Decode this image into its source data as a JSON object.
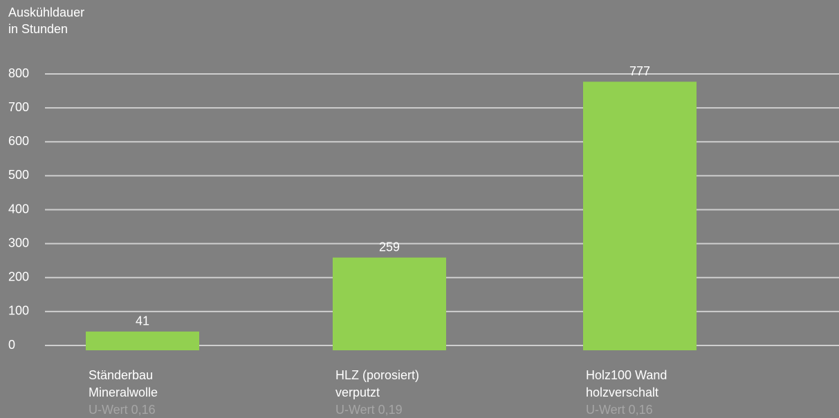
{
  "chart_data": {
    "type": "bar",
    "ylabel": [
      "Auskühldauer",
      "in Stunden"
    ],
    "categories": [
      [
        "Ständerbau",
        "Mineralwolle"
      ],
      [
        "HLZ (porosiert)",
        "verputzt"
      ],
      [
        "Holz100 Wand",
        "holzverschalt"
      ]
    ],
    "sublabels": [
      "U-Wert 0,16",
      "U-Wert 0,19",
      "U-Wert 0,16"
    ],
    "values": [
      41,
      259,
      777
    ],
    "color": "#92d050",
    "ylim": [
      0,
      800
    ],
    "yticks": [
      0,
      100,
      200,
      300,
      400,
      500,
      600,
      700,
      800
    ],
    "grid": true
  }
}
